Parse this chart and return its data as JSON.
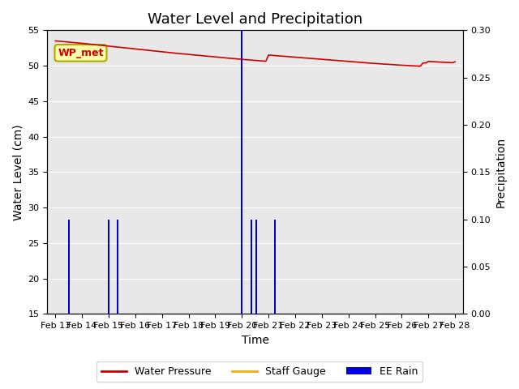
{
  "title": "Water Level and Precipitation",
  "xlabel": "Time",
  "ylabel_left": "Water Level (cm)",
  "ylabel_right": "Precipitation",
  "ylim_left": [
    15,
    55
  ],
  "ylim_right": [
    0.0,
    0.3
  ],
  "yticks_left": [
    15,
    20,
    25,
    30,
    35,
    40,
    45,
    50,
    55
  ],
  "yticks_right": [
    0.0,
    0.05,
    0.1,
    0.15,
    0.2,
    0.25,
    0.3
  ],
  "bg_color": "#e8e8e8",
  "water_pressure_color": "#cc0000",
  "staff_gauge_color": "#ffaa00",
  "ee_rain_color": "#0000dd",
  "annotation_label": "WP_met",
  "annotation_facecolor": "#ffffaa",
  "annotation_edgecolor": "#aaaa00",
  "annotation_textcolor": "#cc0000",
  "wp_x": [
    0.0,
    0.1,
    0.2,
    0.3,
    0.4,
    0.5,
    0.6,
    0.7,
    0.8,
    0.9,
    1.0,
    1.1,
    1.2,
    1.3,
    1.4,
    1.5,
    1.6,
    1.7,
    1.8,
    1.9,
    2.0,
    2.1,
    2.2,
    2.3,
    2.4,
    2.5,
    2.6,
    2.7,
    2.8,
    2.9,
    3.0,
    3.1,
    3.2,
    3.3,
    3.4,
    3.5,
    3.6,
    3.7,
    3.8,
    3.9,
    4.0,
    4.1,
    4.2,
    4.3,
    4.4,
    4.5,
    4.6,
    4.7,
    4.8,
    4.9,
    5.0,
    5.1,
    5.2,
    5.3,
    5.4,
    5.5,
    5.6,
    5.7,
    5.8,
    5.9,
    6.0,
    6.1,
    6.2,
    6.3,
    6.4,
    6.5,
    6.6,
    6.7,
    6.8,
    6.9,
    7.0,
    7.1,
    7.2,
    7.3,
    7.4,
    7.5,
    7.6,
    7.7,
    7.8,
    7.9,
    8.0,
    8.1,
    8.2,
    8.3,
    8.4,
    8.5,
    8.6,
    8.7,
    8.8,
    8.9,
    9.0,
    9.1,
    9.2,
    9.3,
    9.4,
    9.5,
    9.6,
    9.7,
    9.8,
    9.9,
    10.0,
    10.1,
    10.2,
    10.3,
    10.4,
    10.5,
    10.6,
    10.7,
    10.8,
    10.9,
    11.0,
    11.1,
    11.2,
    11.3,
    11.4,
    11.5,
    11.6,
    11.7,
    11.8,
    11.9,
    12.0,
    12.1,
    12.2,
    12.3,
    12.4,
    12.5,
    12.6,
    12.7,
    12.8,
    12.9,
    13.0,
    13.1,
    13.2,
    13.3,
    13.4,
    13.5,
    13.6,
    13.7,
    13.8,
    13.9,
    14.0,
    14.1,
    14.2,
    14.3,
    14.4,
    14.5,
    14.6,
    14.7,
    14.8,
    14.9,
    15.0
  ],
  "wp_y": [
    53.5,
    53.47,
    53.44,
    53.4,
    53.37,
    53.33,
    53.3,
    53.26,
    53.23,
    53.19,
    53.16,
    53.12,
    53.09,
    53.05,
    53.01,
    52.97,
    52.93,
    52.89,
    52.85,
    52.81,
    52.77,
    52.73,
    52.69,
    52.65,
    52.61,
    52.57,
    52.53,
    52.49,
    52.45,
    52.41,
    52.37,
    52.33,
    52.29,
    52.25,
    52.21,
    52.17,
    52.13,
    52.09,
    52.05,
    52.01,
    51.97,
    51.93,
    51.89,
    51.85,
    51.81,
    51.77,
    51.73,
    51.7,
    51.66,
    51.63,
    51.59,
    51.56,
    51.52,
    51.49,
    51.45,
    51.42,
    51.38,
    51.35,
    51.31,
    51.28,
    51.24,
    51.21,
    51.17,
    51.14,
    51.1,
    51.07,
    51.03,
    51.0,
    50.96,
    50.93,
    50.9,
    50.87,
    50.84,
    50.81,
    50.78,
    50.75,
    50.72,
    50.69,
    50.66,
    50.63,
    51.5,
    51.47,
    51.44,
    51.41,
    51.38,
    51.35,
    51.32,
    51.29,
    51.26,
    51.23,
    51.2,
    51.17,
    51.14,
    51.11,
    51.08,
    51.05,
    51.02,
    50.99,
    50.96,
    50.93,
    50.9,
    50.87,
    50.84,
    50.81,
    50.78,
    50.75,
    50.72,
    50.69,
    50.66,
    50.63,
    50.6,
    50.57,
    50.54,
    50.51,
    50.48,
    50.46,
    50.43,
    50.4,
    50.37,
    50.35,
    50.32,
    50.29,
    50.27,
    50.24,
    50.22,
    50.19,
    50.17,
    50.14,
    50.12,
    50.09,
    50.07,
    50.05,
    50.03,
    50.01,
    49.99,
    49.97,
    49.95,
    49.93,
    50.4,
    50.38,
    50.6,
    50.58,
    50.56,
    50.54,
    50.52,
    50.5,
    50.48,
    50.46,
    50.44,
    50.42,
    50.55
  ],
  "rain_x": [
    0.5,
    2.0,
    2.35,
    7.0,
    7.35,
    7.55,
    8.25
  ],
  "rain_values": [
    0.1,
    0.1,
    0.1,
    0.3,
    0.1,
    0.1,
    0.1
  ],
  "xtick_positions": [
    0,
    1,
    2,
    3,
    4,
    5,
    6,
    7,
    8,
    9,
    10,
    11,
    12,
    13,
    14,
    15
  ],
  "xtick_labels": [
    "Feb 13",
    "Feb 14",
    "Feb 15",
    "Feb 16",
    "Feb 17",
    "Feb 18",
    "Feb 19",
    "Feb 20",
    "Feb 21",
    "Feb 22",
    "Feb 23",
    "Feb 24",
    "Feb 25",
    "Feb 26",
    "Feb 27",
    "Feb 28"
  ],
  "legend_labels": [
    "Water Pressure",
    "Staff Gauge",
    "EE Rain"
  ],
  "legend_colors": [
    "#cc0000",
    "#ffaa00",
    "#0000dd"
  ],
  "title_fontsize": 13,
  "axis_label_fontsize": 10,
  "tick_fontsize": 8
}
